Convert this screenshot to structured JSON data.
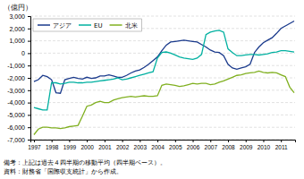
{
  "chart_data": {
    "type": "line",
    "title": "（億円）",
    "x": [
      1997,
      1997.25,
      1997.5,
      1997.75,
      1998,
      1998.25,
      1998.5,
      1998.75,
      1999,
      1999.25,
      1999.5,
      1999.75,
      2000,
      2000.25,
      2000.5,
      2000.75,
      2001,
      2001.25,
      2001.5,
      2001.75,
      2002,
      2002.25,
      2002.5,
      2002.75,
      2003,
      2003.25,
      2003.5,
      2003.75,
      2004,
      2004.25,
      2004.5,
      2004.75,
      2005,
      2005.25,
      2005.5,
      2005.75,
      2006,
      2006.25,
      2006.5,
      2006.75,
      2007,
      2007.25,
      2007.5,
      2007.75,
      2008,
      2008.25,
      2008.5,
      2008.75,
      2009,
      2009.25,
      2009.5,
      2009.75,
      2010,
      2010.25,
      2010.5,
      2010.75,
      2011,
      2011.25,
      2011.5,
      2011.75
    ],
    "xlim": [
      1996.8,
      2011.8
    ],
    "xticks": [
      1997,
      1998,
      1999,
      2000,
      2001,
      2002,
      2003,
      2004,
      2005,
      2006,
      2007,
      2008,
      2009,
      2010,
      2011
    ],
    "ylim": [
      -7000,
      3000
    ],
    "yticks": [
      {
        "value": -7000,
        "label": "-7,000"
      },
      {
        "value": -6000,
        "label": "-6,000"
      },
      {
        "value": -5000,
        "label": "-5,000"
      },
      {
        "value": -4000,
        "label": "-4,000"
      },
      {
        "value": -3000,
        "label": "-3,000"
      },
      {
        "value": -2000,
        "label": "-2,000"
      },
      {
        "value": -1000,
        "label": "-1,000"
      },
      0,
      {
        "value": 1000,
        "label": "1,000"
      },
      {
        "value": 2000,
        "label": "2,000"
      },
      {
        "value": 3000,
        "label": "3,000"
      }
    ],
    "grid": true,
    "legend": "upper-left",
    "annotations": [
      "備考：上記は過去４四半期の移動平均（四半期ベース）。",
      "資料：財務省「国際収支統計」から作成。"
    ],
    "series": [
      {
        "name": "アジア",
        "color": "#1a3a8c",
        "values": [
          -2300,
          -2150,
          -1800,
          -1900,
          -2150,
          -3200,
          -3250,
          -2150,
          -2050,
          -1950,
          -2050,
          -2100,
          -1950,
          -2050,
          -2000,
          -1850,
          -1850,
          -1750,
          -1850,
          -1950,
          -1950,
          -1800,
          -1600,
          -1450,
          -1350,
          -1150,
          -900,
          -600,
          -300,
          200,
          650,
          900,
          950,
          1000,
          1050,
          1000,
          950,
          900,
          700,
          500,
          250,
          100,
          50,
          -200,
          -900,
          -1200,
          -1300,
          -1200,
          -1100,
          -900,
          50,
          500,
          850,
          1050,
          1250,
          1600,
          2000,
          2200,
          2400,
          2600
        ]
      },
      {
        "name": "EU",
        "color": "#00b0a0",
        "values": [
          -4400,
          -4500,
          -4600,
          -4600,
          -2400,
          -2400,
          -2500,
          -2450,
          -2350,
          -2350,
          -2400,
          -2400,
          -2350,
          -2350,
          -2300,
          -2250,
          -2200,
          -2150,
          -2100,
          -2000,
          -2150,
          -2100,
          -2000,
          -1900,
          -1800,
          -1700,
          -1600,
          -1500,
          -400,
          50,
          100,
          0,
          -150,
          -300,
          -400,
          -450,
          -500,
          -400,
          -100,
          1500,
          1700,
          1800,
          1850,
          1700,
          350,
          50,
          -200,
          -200,
          -150,
          -100,
          -100,
          -150,
          -100,
          -50,
          50,
          100,
          200,
          200,
          150,
          100
        ]
      },
      {
        "name": "北米",
        "color": "#80b020",
        "values": [
          -6600,
          -6150,
          -6000,
          -6000,
          -6050,
          -6050,
          -6100,
          -6050,
          -5950,
          -5900,
          -5850,
          -5100,
          -4300,
          -4200,
          -4000,
          -3900,
          -4000,
          -4000,
          -3800,
          -3700,
          -3600,
          -3550,
          -3500,
          -3550,
          -3500,
          -3450,
          -3500,
          -3500,
          -3450,
          -2600,
          -2500,
          -2550,
          -2600,
          -2700,
          -2650,
          -2550,
          -2450,
          -2500,
          -2450,
          -2450,
          -2550,
          -2500,
          -2350,
          -2250,
          -2100,
          -1950,
          -1800,
          -1750,
          -1650,
          -1600,
          -1550,
          -1450,
          -1550,
          -1600,
          -1550,
          -1600,
          -1750,
          -1900,
          -2750,
          -3200
        ]
      }
    ]
  }
}
